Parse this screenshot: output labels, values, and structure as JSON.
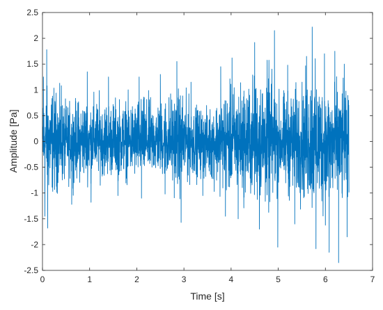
{
  "chart_data": {
    "type": "line",
    "title": "",
    "xlabel": "Time [s]",
    "ylabel": "Amplitude [Pa]",
    "xlim": [
      0,
      7
    ],
    "ylim": [
      -2.5,
      2.5
    ],
    "xticks": [
      0,
      1,
      2,
      3,
      4,
      5,
      6,
      7
    ],
    "yticks": [
      -2.5,
      -2,
      -1.5,
      -1,
      -0.5,
      0,
      0.5,
      1,
      1.5,
      2,
      2.5
    ],
    "xtick_labels": [
      "0",
      "1",
      "2",
      "3",
      "4",
      "5",
      "6",
      "7"
    ],
    "ytick_labels": [
      "-2.5",
      "-2",
      "-1.5",
      "-1",
      "-0.5",
      "0",
      "0.5",
      "1",
      "1.5",
      "2",
      "2.5"
    ],
    "grid": false,
    "legend": "none",
    "series": [
      {
        "color": "#0072BD",
        "signal_range": [
          0,
          6.5
        ],
        "envelope": {
          "t": [
            0.0,
            0.15,
            0.5,
            1.0,
            1.5,
            2.0,
            2.5,
            2.9,
            3.2,
            3.5,
            3.8,
            4.0,
            4.5,
            4.8,
            5.0,
            5.5,
            5.7,
            6.0,
            6.2,
            6.4,
            6.5
          ],
          "max": [
            1.3,
            1.75,
            1.1,
            1.35,
            1.25,
            1.25,
            1.3,
            1.55,
            1.1,
            0.9,
            1.45,
            1.6,
            1.9,
            2.15,
            1.4,
            1.65,
            2.2,
            1.7,
            1.75,
            1.5,
            1.25
          ],
          "min": [
            -1.5,
            -1.65,
            -1.2,
            -1.1,
            -1.0,
            -1.15,
            -1.0,
            -1.55,
            -1.05,
            -1.1,
            -1.4,
            -1.55,
            -1.75,
            -2.05,
            -1.5,
            -1.8,
            -2.1,
            -2.15,
            -2.35,
            -1.9,
            -1.5
          ]
        },
        "points": [
          [
            0.02,
            1.25
          ],
          [
            0.05,
            -1.45
          ],
          [
            0.09,
            1.78
          ],
          [
            0.11,
            -1.68
          ],
          [
            0.4,
            1.08
          ],
          [
            0.62,
            -1.22
          ],
          [
            0.95,
            1.35
          ],
          [
            1.03,
            -1.18
          ],
          [
            1.4,
            1.25
          ],
          [
            1.6,
            -1.05
          ],
          [
            2.05,
            1.25
          ],
          [
            2.1,
            -1.1
          ],
          [
            2.5,
            1.3
          ],
          [
            2.6,
            -1.02
          ],
          [
            2.85,
            1.55
          ],
          [
            2.94,
            -1.57
          ],
          [
            3.15,
            1.15
          ],
          [
            3.4,
            -1.05
          ],
          [
            3.78,
            1.45
          ],
          [
            3.88,
            -1.45
          ],
          [
            4.02,
            1.62
          ],
          [
            4.15,
            -1.5
          ],
          [
            4.5,
            1.92
          ],
          [
            4.6,
            -1.7
          ],
          [
            4.92,
            2.15
          ],
          [
            4.99,
            -2.05
          ],
          [
            5.2,
            1.48
          ],
          [
            5.35,
            -1.6
          ],
          [
            5.6,
            1.65
          ],
          [
            5.72,
            2.22
          ],
          [
            5.8,
            -2.08
          ],
          [
            5.98,
            1.7
          ],
          [
            6.08,
            -2.15
          ],
          [
            6.2,
            1.75
          ],
          [
            6.28,
            -2.35
          ],
          [
            6.4,
            1.5
          ],
          [
            6.46,
            -1.85
          ]
        ]
      }
    ]
  }
}
